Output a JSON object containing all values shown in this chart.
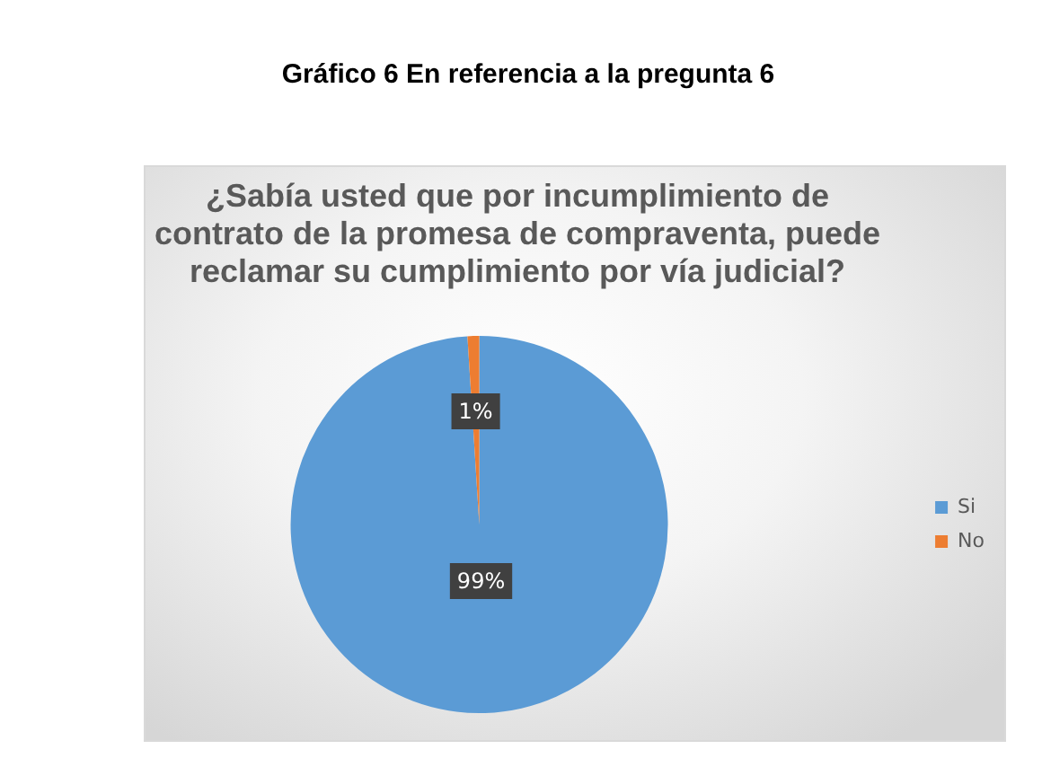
{
  "chart_data": {
    "type": "pie",
    "title": "Gráfico 6 En referencia a la pregunta 6",
    "subtitle": "¿Sabía usted que por incumplimiento de contrato de la promesa de compraventa, puede reclamar su cumplimiento por vía judicial?",
    "categories": [
      "Si",
      "No"
    ],
    "values": [
      99,
      1
    ],
    "colors": [
      "#5b9bd5",
      "#ed7d31"
    ],
    "value_labels": [
      "99%",
      "1%"
    ],
    "legend": "right"
  }
}
